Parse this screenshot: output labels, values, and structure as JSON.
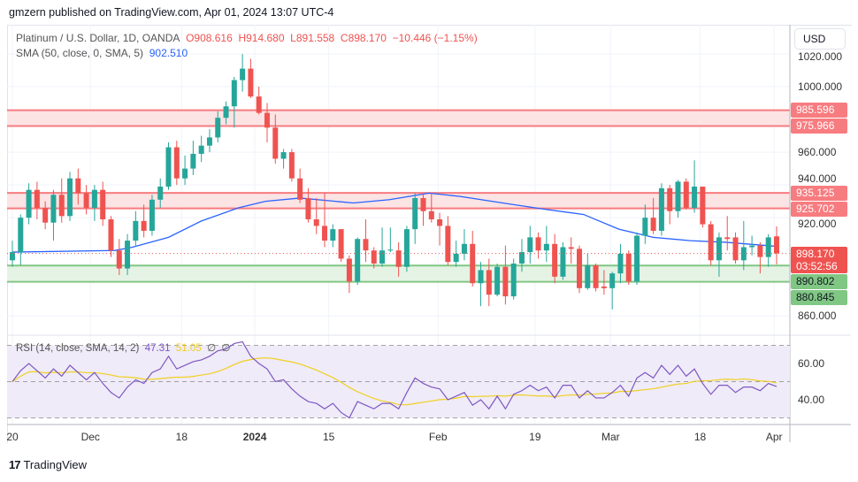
{
  "publisher_line": "gmzern published on TradingView.com, Apr 01, 2024 13:07 UTC-4",
  "legend": {
    "symbol": "Platinum / U.S. Dollar, 1D, OANDA",
    "open": "O908.616",
    "high": "H914.680",
    "low": "L891.558",
    "close": "C898.170",
    "change": "−10.446 (−1.15%)",
    "sma_label": "SMA (50, close, 0, SMA, 5)",
    "sma_value": "902.510"
  },
  "rsi_legend": {
    "label": "RSI (14, close, SMA, 14, 2)",
    "rsi": "47.31",
    "sma": "51.05",
    "extra1": "∅",
    "extra2": "∅"
  },
  "currency": "USD",
  "price_axis": [
    "1020.000",
    "1000.000",
    "960.000",
    "940.000",
    "920.000",
    "860.000"
  ],
  "price_axis_values": [
    1020,
    1000,
    960,
    940,
    920,
    860
  ],
  "rsi_axis": [
    "60.00",
    "40.00"
  ],
  "rsi_axis_values": [
    60,
    40
  ],
  "tags": {
    "r1": "985.596",
    "r2": "975.966",
    "r3": "935.125",
    "r4": "925.702",
    "current": "898.170",
    "countdown": "03:52:56",
    "s1": "890.802",
    "s2": "880.845"
  },
  "time_axis": [
    "20",
    "Dec",
    "18",
    "2024",
    "15",
    "Feb",
    "19",
    "Mar",
    "18",
    "Apr"
  ],
  "time_axis_index": [
    1,
    10.5,
    21.6,
    30.5,
    39.5,
    52.8,
    64.6,
    73.8,
    84.7,
    93.7
  ],
  "footer": "TradingView",
  "colors": {
    "up": "#26a69a",
    "down": "#ef5350",
    "sma": "#2962ff",
    "rsi": "#7e57c2",
    "rsi_sma": "#f0d020",
    "zone_red": "#f77c80",
    "zone_green": "#81c784"
  },
  "chart_data": {
    "type": "candlestick",
    "title": "Platinum / U.S. Dollar, 1D, OANDA",
    "ylim": [
      850,
      1025
    ],
    "zones": [
      {
        "type": "resistance",
        "top": 985.596,
        "bottom": 975.966
      },
      {
        "type": "resistance",
        "top": 935.125,
        "bottom": 925.702
      },
      {
        "type": "support",
        "top": 890.802,
        "bottom": 880.845
      }
    ],
    "ohlc": [
      [
        894,
        906,
        890,
        899
      ],
      [
        899,
        922,
        891,
        920
      ],
      [
        920,
        941,
        916,
        937
      ],
      [
        937,
        942,
        919,
        926
      ],
      [
        926,
        930,
        913,
        917
      ],
      [
        917,
        937,
        906,
        934
      ],
      [
        934,
        944,
        917,
        921
      ],
      [
        921,
        948,
        918,
        944
      ],
      [
        944,
        950,
        928,
        935
      ],
      [
        935,
        940,
        922,
        926
      ],
      [
        926,
        940,
        918,
        937
      ],
      [
        937,
        942,
        915,
        919
      ],
      [
        919,
        921,
        896,
        900
      ],
      [
        900,
        907,
        885,
        889
      ],
      [
        889,
        910,
        885,
        906
      ],
      [
        906,
        924,
        903,
        918
      ],
      [
        918,
        928,
        908,
        912
      ],
      [
        912,
        934,
        909,
        931
      ],
      [
        931,
        944,
        926,
        939
      ],
      [
        939,
        966,
        937,
        963
      ],
      [
        963,
        967,
        940,
        944
      ],
      [
        944,
        958,
        940,
        950
      ],
      [
        950,
        967,
        946,
        959
      ],
      [
        959,
        970,
        954,
        964
      ],
      [
        964,
        974,
        960,
        969
      ],
      [
        969,
        985,
        966,
        981
      ],
      [
        981,
        991,
        977,
        988
      ],
      [
        988,
        1006,
        975,
        1004
      ],
      [
        1004,
        1020,
        997,
        1011
      ],
      [
        1011,
        1017,
        993,
        994
      ],
      [
        994,
        1000,
        983,
        984
      ],
      [
        984,
        990,
        966,
        975
      ],
      [
        975,
        983,
        953,
        956
      ],
      [
        956,
        962,
        950,
        960
      ],
      [
        960,
        962,
        942,
        944
      ],
      [
        944,
        950,
        929,
        931
      ],
      [
        932,
        938,
        917,
        919
      ],
      [
        919,
        932,
        910,
        915
      ],
      [
        915,
        935,
        902,
        906
      ],
      [
        906,
        916,
        902,
        913
      ],
      [
        913,
        913,
        893,
        895
      ],
      [
        895,
        897,
        874,
        881
      ],
      [
        881,
        908,
        879,
        907
      ],
      [
        907,
        919,
        893,
        900
      ],
      [
        900,
        902,
        889,
        892
      ],
      [
        892,
        914,
        890,
        900
      ],
      [
        900,
        914,
        899,
        900.5
      ],
      [
        900,
        905,
        884,
        890
      ],
      [
        890,
        915,
        887,
        913
      ],
      [
        913,
        935,
        904,
        932
      ],
      [
        932,
        935,
        915,
        924
      ],
      [
        924,
        935,
        917,
        919
      ],
      [
        919,
        923,
        903,
        915
      ],
      [
        915,
        921,
        891,
        893
      ],
      [
        893,
        906,
        890,
        898
      ],
      [
        898,
        913,
        894,
        904
      ],
      [
        904,
        912,
        878,
        880
      ],
      [
        880,
        893,
        866,
        888
      ],
      [
        888,
        895,
        866,
        873
      ],
      [
        873,
        892,
        872,
        890
      ],
      [
        890,
        903,
        867,
        872
      ],
      [
        872,
        895,
        870,
        892
      ],
      [
        892,
        907,
        887,
        899
      ],
      [
        899,
        915,
        892,
        908
      ],
      [
        908,
        911,
        895,
        900
      ],
      [
        900,
        915,
        893,
        904
      ],
      [
        904,
        910,
        880,
        884
      ],
      [
        884,
        905,
        882,
        902
      ],
      [
        902,
        908,
        892,
        901
      ],
      [
        901,
        903,
        874,
        877
      ],
      [
        877,
        898,
        876,
        891
      ],
      [
        891,
        892,
        875,
        877
      ],
      [
        878,
        888,
        873,
        877
      ],
      [
        877,
        887,
        864,
        886
      ],
      [
        886,
        904,
        880,
        898
      ],
      [
        898,
        900,
        879,
        881
      ],
      [
        881,
        911,
        879,
        909
      ],
      [
        909,
        928,
        904,
        920
      ],
      [
        920,
        932,
        910,
        912
      ],
      [
        912,
        941,
        909,
        938
      ],
      [
        938,
        940,
        916,
        924
      ],
      [
        924,
        943,
        920,
        942
      ],
      [
        942,
        944,
        925,
        926
      ],
      [
        926,
        955,
        923,
        939
      ],
      [
        939,
        939,
        914,
        916
      ],
      [
        916,
        918,
        891,
        894
      ],
      [
        894,
        911,
        884,
        908
      ],
      [
        908,
        921,
        900,
        907
      ],
      [
        908,
        911,
        892,
        894
      ],
      [
        894,
        918,
        888,
        902
      ],
      [
        902,
        909,
        897,
        903
      ],
      [
        903,
        905,
        886,
        896
      ],
      [
        896,
        910,
        890,
        908
      ],
      [
        908.616,
        914.68,
        891.558,
        898.17
      ]
    ],
    "sma50": [
      [
        1,
        899
      ],
      [
        13.5,
        900
      ],
      [
        15.6,
        902
      ],
      [
        20,
        908
      ],
      [
        24,
        918
      ],
      [
        28.5,
        926
      ],
      [
        31.8,
        930
      ],
      [
        36,
        932
      ],
      [
        42.5,
        929
      ],
      [
        46.9,
        931
      ],
      [
        51.7,
        935
      ],
      [
        55.5,
        933
      ],
      [
        62,
        928
      ],
      [
        66,
        925
      ],
      [
        70.5,
        922
      ],
      [
        74.8,
        913
      ],
      [
        79,
        908
      ],
      [
        83.5,
        906
      ],
      [
        87.8,
        905
      ],
      [
        94,
        902.51
      ]
    ],
    "rsi": [
      50,
      56,
      60,
      56,
      52,
      57,
      53,
      59,
      55,
      51,
      55,
      49,
      44,
      41,
      47,
      51,
      49,
      55,
      57,
      64,
      57,
      59,
      61,
      62,
      64,
      67,
      68,
      71,
      72,
      64,
      60,
      57,
      50,
      51,
      46,
      42,
      39,
      38,
      35,
      38,
      33,
      30,
      39,
      37,
      35,
      38,
      38,
      35,
      44,
      52,
      49,
      47,
      46,
      40,
      42,
      44,
      37,
      40,
      35,
      42,
      35,
      43,
      45,
      48,
      45,
      47,
      41,
      48,
      48,
      41,
      45,
      41,
      41,
      44,
      48,
      42,
      52,
      55,
      52,
      59,
      54,
      59,
      53,
      57,
      49,
      43,
      48,
      48,
      44,
      47,
      47,
      45,
      49,
      47.31
    ],
    "rsi_bands": [
      70,
      50,
      30
    ],
    "rsi_ylim": [
      25,
      75
    ]
  }
}
